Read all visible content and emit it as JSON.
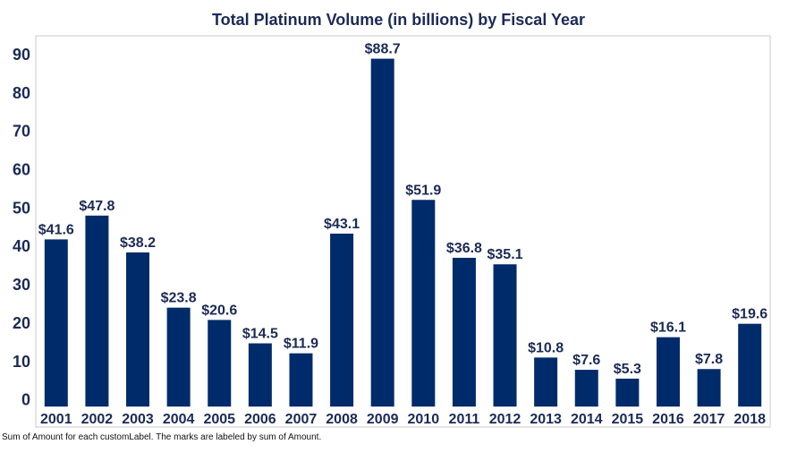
{
  "chart_data": {
    "type": "bar",
    "title": "Total Platinum Volume (in billions) by Fiscal Year",
    "categories": [
      "2001",
      "2002",
      "2003",
      "2004",
      "2005",
      "2006",
      "2007",
      "2008",
      "2009",
      "2010",
      "2011",
      "2012",
      "2013",
      "2014",
      "2015",
      "2016",
      "2017",
      "2018"
    ],
    "values": [
      41.6,
      47.8,
      38.2,
      23.8,
      20.6,
      14.5,
      11.9,
      43.1,
      88.7,
      51.9,
      36.8,
      35.1,
      10.8,
      7.6,
      5.3,
      16.1,
      7.8,
      19.6
    ],
    "data_labels": [
      "$41.6",
      "$47.8",
      "$38.2",
      "$23.8",
      "$20.6",
      "$14.5",
      "$11.9",
      "$43.1",
      "$88.7",
      "$51.9",
      "$36.8",
      "$35.1",
      "$10.8",
      "$7.6",
      "$5.3",
      "$16.1",
      "$7.8",
      "$19.6"
    ],
    "y_ticks": [
      0,
      10,
      20,
      30,
      40,
      50,
      60,
      70,
      80,
      90
    ],
    "ylim": [
      -3,
      97
    ],
    "xlabel": "",
    "ylabel": "",
    "grid": false,
    "bar_color": "#002b6a",
    "label_color": "#1b2a56"
  },
  "footnote": "Sum of Amount for each customLabel.  The marks are labeled by sum of Amount."
}
